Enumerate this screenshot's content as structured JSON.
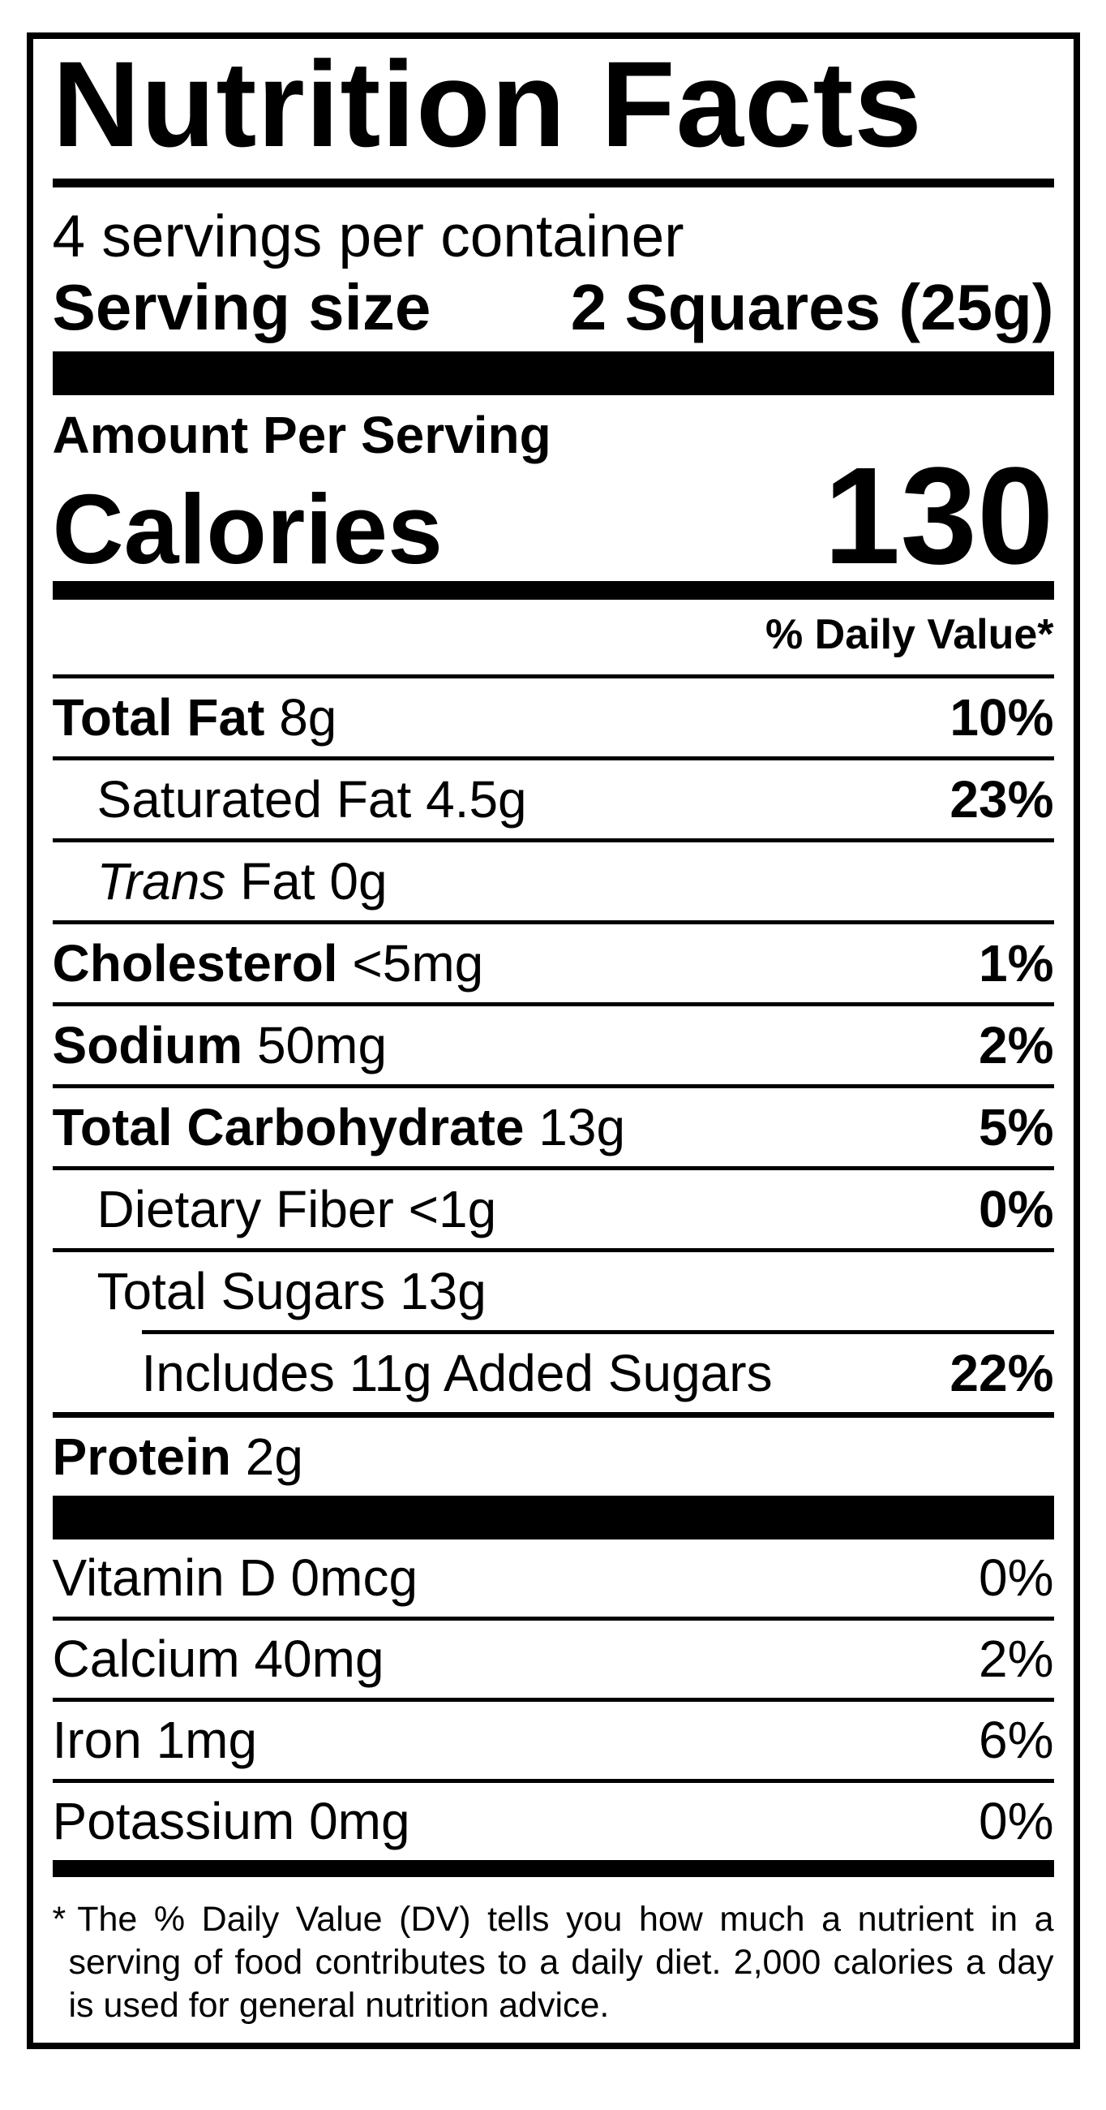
{
  "colors": {
    "ink": "#000000",
    "paper": "#ffffff"
  },
  "label": {
    "title": "Nutrition Facts",
    "servings_line": "4 servings per container",
    "serving_size": {
      "label": "Serving size",
      "value": "2 Squares (25g)"
    },
    "amount_per_serving": "Amount Per Serving",
    "calories": {
      "label": "Calories",
      "value": "130"
    },
    "daily_value_header": "% Daily Value*",
    "nutrients": [
      {
        "bold": "Total Fat ",
        "italic": "",
        "regular": "8g",
        "dv": "10%"
      },
      {
        "bold": "",
        "italic": "",
        "regular": "Saturated Fat 4.5g",
        "dv": "23%"
      },
      {
        "bold": "",
        "italic": "Trans ",
        "regular": "Fat 0g",
        "dv": ""
      },
      {
        "bold": "Cholesterol ",
        "italic": "",
        "regular": "<5mg",
        "dv": "1%"
      },
      {
        "bold": "Sodium ",
        "italic": "",
        "regular": "50mg",
        "dv": "2%"
      },
      {
        "bold": "Total Carbohydrate ",
        "italic": "",
        "regular": "13g",
        "dv": "5%"
      },
      {
        "bold": "",
        "italic": "",
        "regular": "Dietary Fiber <1g",
        "dv": "0%"
      },
      {
        "bold": "",
        "italic": "",
        "regular": "Total Sugars 13g",
        "dv": ""
      },
      {
        "bold": "",
        "italic": "",
        "regular": "Includes 11g Added Sugars",
        "dv": "22%"
      },
      {
        "bold": "Protein ",
        "italic": "",
        "regular": "2g",
        "dv": ""
      }
    ],
    "micronutrients": [
      {
        "name": "Vitamin D 0mcg",
        "dv": "0%"
      },
      {
        "name": "Calcium 40mg",
        "dv": "2%"
      },
      {
        "name": "Iron 1mg",
        "dv": "6%"
      },
      {
        "name": "Potassium 0mg",
        "dv": "0%"
      }
    ],
    "footnote": {
      "marker": "*",
      "lines": [
        "The % Daily Value (DV) tells you how much a nutrient in a",
        "serving of food contributes to a daily diet. 2,000 calories a day",
        "is used for general nutrition advice."
      ]
    }
  }
}
